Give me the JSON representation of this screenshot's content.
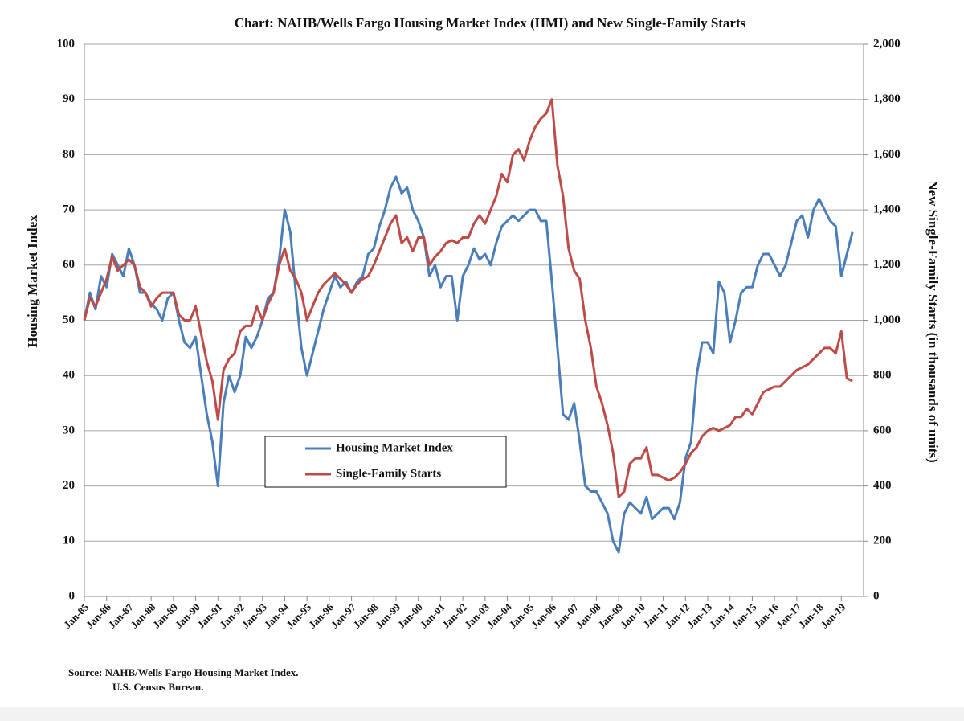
{
  "chart_data": {
    "type": "line",
    "title": "Chart:  NAHB/Wells Fargo Housing Market Index (HMI) and New Single-Family Starts",
    "y_label": "Housing Market Index",
    "y2_label": "New Single-Family Starts (in thousands of units)",
    "source": [
      "Source: NAHB/Wells Fargo Housing Market Index.",
      "U.S. Census Bureau."
    ],
    "x": [
      1985,
      1985.25,
      1985.5,
      1985.75,
      1986,
      1986.25,
      1986.5,
      1986.75,
      1987,
      1987.25,
      1987.5,
      1987.75,
      1988,
      1988.25,
      1988.5,
      1988.75,
      1989,
      1989.25,
      1989.5,
      1989.75,
      1990,
      1990.25,
      1990.5,
      1990.75,
      1991,
      1991.25,
      1991.5,
      1991.75,
      1992,
      1992.25,
      1992.5,
      1992.75,
      1993,
      1993.25,
      1993.5,
      1993.75,
      1994,
      1994.25,
      1994.5,
      1994.75,
      1995,
      1995.25,
      1995.5,
      1995.75,
      1996,
      1996.25,
      1996.5,
      1996.75,
      1997,
      1997.25,
      1997.5,
      1997.75,
      1998,
      1998.25,
      1998.5,
      1998.75,
      1999,
      1999.25,
      1999.5,
      1999.75,
      2000,
      2000.25,
      2000.5,
      2000.75,
      2001,
      2001.25,
      2001.5,
      2001.75,
      2002,
      2002.25,
      2002.5,
      2002.75,
      2003,
      2003.25,
      2003.5,
      2003.75,
      2004,
      2004.25,
      2004.5,
      2004.75,
      2005,
      2005.25,
      2005.5,
      2005.75,
      2006,
      2006.25,
      2006.5,
      2006.75,
      2007,
      2007.25,
      2007.5,
      2007.75,
      2008,
      2008.25,
      2008.5,
      2008.75,
      2009,
      2009.25,
      2009.5,
      2009.75,
      2010,
      2010.25,
      2010.5,
      2010.75,
      2011,
      2011.25,
      2011.5,
      2011.75,
      2012,
      2012.25,
      2012.5,
      2012.75,
      2013,
      2013.25,
      2013.5,
      2013.75,
      2014,
      2014.25,
      2014.5,
      2014.75,
      2015,
      2015.25,
      2015.5,
      2015.75,
      2016,
      2016.25,
      2016.5,
      2016.75,
      2017,
      2017.25,
      2017.5,
      2017.75,
      2018,
      2018.25,
      2018.5,
      2018.75,
      2019,
      2019.25,
      2019.5
    ],
    "xlim": [
      1985,
      2020
    ],
    "xticks": [
      {
        "value": 1985,
        "label": "Jan-85"
      },
      {
        "value": 1986,
        "label": "Jan-86"
      },
      {
        "value": 1987,
        "label": "Jan-87"
      },
      {
        "value": 1988,
        "label": "Jan-88"
      },
      {
        "value": 1989,
        "label": "Jan-89"
      },
      {
        "value": 1990,
        "label": "Jan-90"
      },
      {
        "value": 1991,
        "label": "Jan-91"
      },
      {
        "value": 1992,
        "label": "Jan-92"
      },
      {
        "value": 1993,
        "label": "Jan-93"
      },
      {
        "value": 1994,
        "label": "Jan-94"
      },
      {
        "value": 1995,
        "label": "Jan-95"
      },
      {
        "value": 1996,
        "label": "Jan-96"
      },
      {
        "value": 1997,
        "label": "Jan-97"
      },
      {
        "value": 1998,
        "label": "Jan-98"
      },
      {
        "value": 1999,
        "label": "Jan-99"
      },
      {
        "value": 2000,
        "label": "Jan-00"
      },
      {
        "value": 2001,
        "label": "Jan-01"
      },
      {
        "value": 2002,
        "label": "Jan-02"
      },
      {
        "value": 2003,
        "label": "Jan-03"
      },
      {
        "value": 2004,
        "label": "Jan-04"
      },
      {
        "value": 2005,
        "label": "Jan-05"
      },
      {
        "value": 2006,
        "label": "Jan-06"
      },
      {
        "value": 2007,
        "label": "Jan-07"
      },
      {
        "value": 2008,
        "label": "Jan-08"
      },
      {
        "value": 2009,
        "label": "Jan-09"
      },
      {
        "value": 2010,
        "label": "Jan-10"
      },
      {
        "value": 2011,
        "label": "Jan-11"
      },
      {
        "value": 2012,
        "label": "Jan-12"
      },
      {
        "value": 2013,
        "label": "Jan-13"
      },
      {
        "value": 2014,
        "label": "Jan-14"
      },
      {
        "value": 2015,
        "label": "Jan-15"
      },
      {
        "value": 2016,
        "label": "Jan-16"
      },
      {
        "value": 2017,
        "label": "Jan-17"
      },
      {
        "value": 2018,
        "label": "Jan-18"
      },
      {
        "value": 2019,
        "label": "Jan-19"
      }
    ],
    "ylim": [
      0,
      100
    ],
    "yticks": [
      0,
      10,
      20,
      30,
      40,
      50,
      60,
      70,
      80,
      90,
      100
    ],
    "y2lim": [
      0,
      2000
    ],
    "y2ticks": [
      0,
      200,
      400,
      600,
      800,
      {
        "value": 1000,
        "label": "1,000"
      },
      {
        "value": 1200,
        "label": "1,200"
      },
      {
        "value": 1400,
        "label": "1,400"
      },
      {
        "value": 1600,
        "label": "1,600"
      },
      {
        "value": 1800,
        "label": "1,800"
      },
      {
        "value": 2000,
        "label": "2,000"
      }
    ],
    "grid": true,
    "series": [
      {
        "name": "Housing Market Index",
        "color": "#4a7ebb",
        "axis": "y",
        "values": [
          50,
          55,
          52,
          58,
          56,
          62,
          60,
          58,
          63,
          60,
          55,
          55,
          53,
          52,
          50,
          54,
          55,
          50,
          46,
          45,
          47,
          40,
          33,
          28,
          20,
          35,
          40,
          37,
          40,
          47,
          45,
          47,
          50,
          54,
          55,
          61,
          70,
          66,
          55,
          45,
          40,
          44,
          48,
          52,
          55,
          58,
          56,
          57,
          55,
          57,
          58,
          62,
          63,
          67,
          70,
          74,
          76,
          73,
          74,
          70,
          68,
          65,
          58,
          60,
          56,
          58,
          58,
          50,
          58,
          60,
          63,
          61,
          62,
          60,
          64,
          67,
          68,
          69,
          68,
          69,
          70,
          70,
          68,
          68,
          57,
          45,
          33,
          32,
          35,
          28,
          20,
          19,
          19,
          17,
          15,
          10,
          8,
          15,
          17,
          16,
          15,
          18,
          14,
          15,
          16,
          16,
          14,
          17,
          25,
          28,
          40,
          46,
          46,
          44,
          57,
          55,
          46,
          50,
          55,
          56,
          56,
          60,
          62,
          62,
          60,
          58,
          60,
          64,
          68,
          69,
          65,
          70,
          72,
          70,
          68,
          67,
          58,
          62,
          66
        ]
      },
      {
        "name": "Single-Family Starts",
        "color": "#be4b48",
        "axis": "y2",
        "values": [
          1000,
          1080,
          1050,
          1100,
          1150,
          1230,
          1180,
          1200,
          1220,
          1200,
          1120,
          1100,
          1050,
          1080,
          1100,
          1100,
          1100,
          1020,
          1000,
          1000,
          1050,
          950,
          850,
          780,
          640,
          820,
          860,
          880,
          960,
          980,
          980,
          1050,
          1000,
          1060,
          1100,
          1200,
          1260,
          1180,
          1150,
          1100,
          1000,
          1050,
          1100,
          1130,
          1150,
          1170,
          1150,
          1130,
          1100,
          1130,
          1150,
          1160,
          1200,
          1250,
          1300,
          1350,
          1380,
          1280,
          1300,
          1250,
          1300,
          1300,
          1200,
          1230,
          1250,
          1280,
          1290,
          1280,
          1300,
          1300,
          1350,
          1380,
          1350,
          1400,
          1450,
          1530,
          1500,
          1600,
          1620,
          1580,
          1650,
          1700,
          1730,
          1750,
          1800,
          1560,
          1450,
          1260,
          1180,
          1150,
          1000,
          900,
          760,
          700,
          620,
          520,
          360,
          380,
          480,
          500,
          500,
          540,
          440,
          440,
          430,
          420,
          430,
          450,
          480,
          520,
          540,
          580,
          600,
          610,
          600,
          610,
          620,
          650,
          650,
          680,
          660,
          700,
          740,
          750,
          760,
          760,
          780,
          800,
          820,
          830,
          840,
          860,
          880,
          900,
          900,
          880,
          960,
          790,
          780
        ]
      }
    ]
  }
}
